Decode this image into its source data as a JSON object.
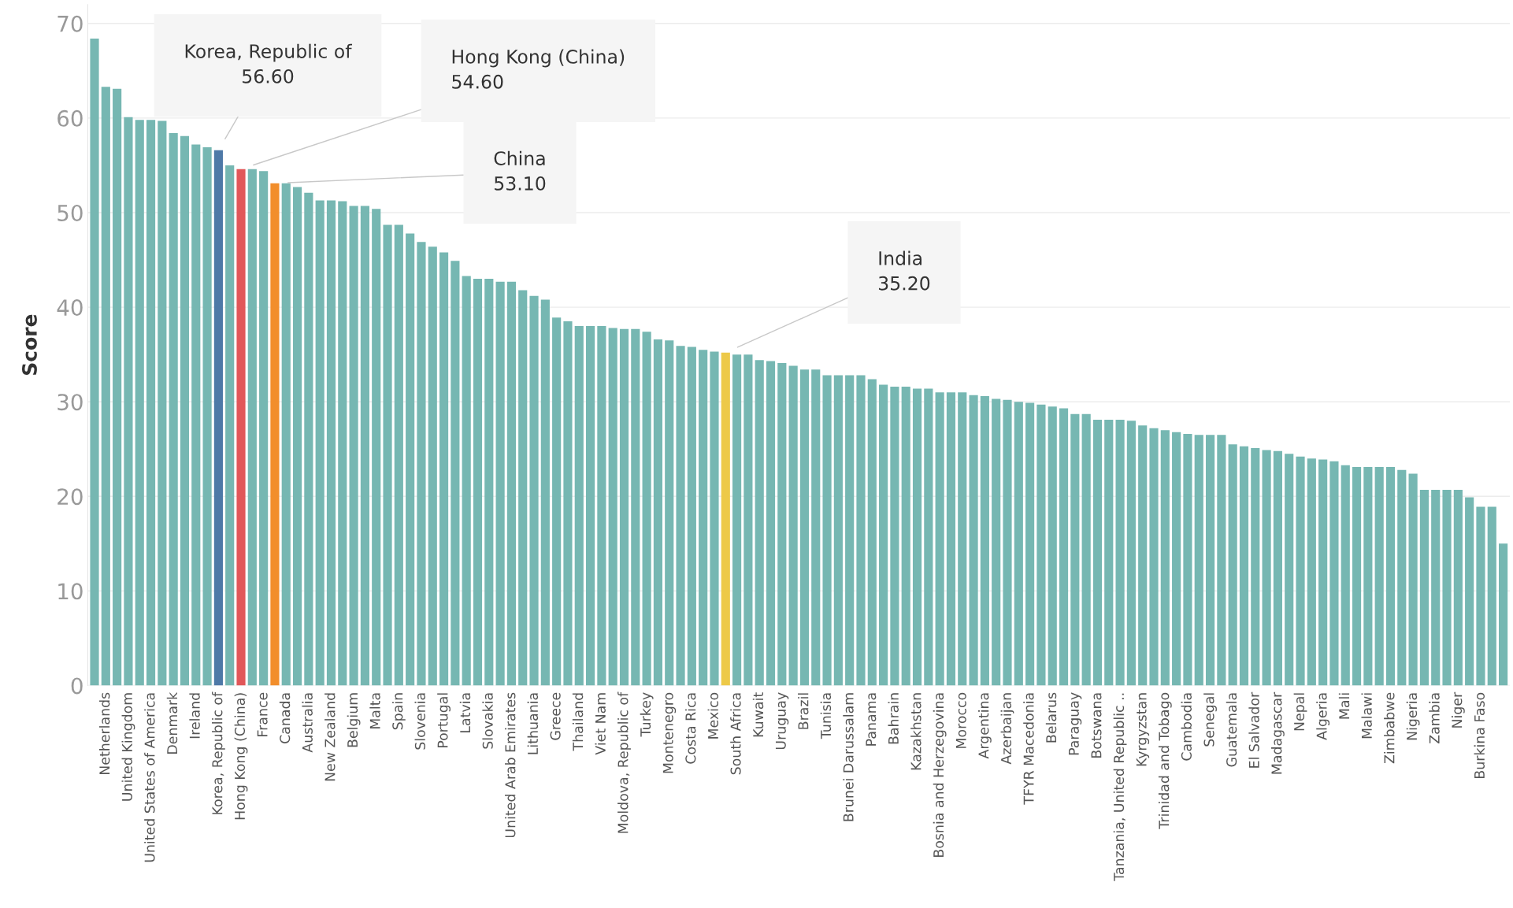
{
  "chart_data": {
    "type": "bar",
    "ylabel": "Score",
    "categories": [
      null,
      "Netherlands",
      null,
      "United Kingdom",
      null,
      "United States of America",
      null,
      "Denmark",
      null,
      "Ireland",
      null,
      "Korea, Republic of",
      null,
      "Hong Kong (China)",
      null,
      "France",
      null,
      "Canada",
      null,
      "Australia",
      null,
      "New Zealand",
      null,
      "Belgium",
      null,
      "Malta",
      null,
      "Spain",
      null,
      "Slovenia",
      null,
      "Portugal",
      null,
      "Latvia",
      null,
      "Slovakia",
      null,
      "United Arab Emirates",
      null,
      "Lithuania",
      null,
      "Greece",
      null,
      "Thailand",
      null,
      "Viet Nam",
      null,
      "Moldova, Republic of",
      null,
      "Turkey",
      null,
      "Montenegro",
      null,
      "Costa Rica",
      null,
      "Mexico",
      null,
      "South Africa",
      null,
      "Kuwait",
      null,
      "Uruguay",
      null,
      "Brazil",
      null,
      "Tunisia",
      null,
      "Brunei Darussalam",
      null,
      "Panama",
      null,
      "Bahrain",
      null,
      "Kazakhstan",
      null,
      "Bosnia and Herzegovina",
      null,
      "Morocco",
      null,
      "Argentina",
      null,
      "Azerbaijan",
      null,
      "TFYR Macedonia",
      null,
      "Belarus",
      null,
      "Paraguay",
      null,
      "Botswana",
      null,
      "Tanzania, United Republic ..",
      null,
      "Kyrgyzstan",
      null,
      "Trinidad and Tobago",
      null,
      "Cambodia",
      null,
      "Senegal",
      null,
      "Guatemala",
      null,
      "El Salvador",
      null,
      "Madagascar",
      null,
      "Nepal",
      null,
      "Algeria",
      null,
      "Mali",
      null,
      "Malawi",
      null,
      "Zimbabwe",
      null,
      "Nigeria",
      null,
      "Zambia",
      null,
      "Niger",
      null,
      "Burkina Faso",
      null,
      null
    ],
    "values": [
      68.4,
      63.3,
      63.1,
      60.1,
      59.8,
      59.8,
      59.7,
      58.4,
      58.1,
      57.2,
      56.9,
      56.6,
      55.0,
      54.6,
      54.6,
      54.4,
      53.1,
      53.1,
      52.7,
      52.1,
      51.3,
      51.3,
      51.2,
      50.7,
      50.7,
      50.4,
      48.7,
      48.7,
      47.8,
      46.9,
      46.4,
      45.8,
      44.9,
      43.3,
      43.0,
      43.0,
      42.7,
      42.7,
      41.8,
      41.2,
      40.8,
      38.9,
      38.5,
      38.0,
      38.0,
      38.0,
      37.8,
      37.7,
      37.7,
      37.4,
      36.6,
      36.5,
      35.9,
      35.8,
      35.5,
      35.3,
      35.2,
      35.0,
      35.0,
      34.4,
      34.3,
      34.1,
      33.8,
      33.4,
      33.4,
      32.8,
      32.8,
      32.8,
      32.8,
      32.4,
      31.8,
      31.6,
      31.6,
      31.4,
      31.4,
      31.0,
      31.0,
      31.0,
      30.7,
      30.6,
      30.3,
      30.2,
      30.0,
      29.9,
      29.7,
      29.5,
      29.3,
      28.7,
      28.7,
      28.1,
      28.1,
      28.1,
      28.0,
      27.5,
      27.2,
      27.0,
      26.8,
      26.6,
      26.5,
      26.5,
      26.5,
      25.5,
      25.3,
      25.1,
      24.9,
      24.8,
      24.5,
      24.2,
      24.0,
      23.9,
      23.7,
      23.3,
      23.1,
      23.1,
      23.1,
      23.1,
      22.8,
      22.4,
      20.7,
      20.7,
      20.7,
      20.7,
      19.9,
      18.9,
      18.9,
      15.0
    ],
    "colors": [
      "#76b7b2",
      "#76b7b2",
      "#76b7b2",
      "#76b7b2",
      "#76b7b2",
      "#76b7b2",
      "#76b7b2",
      "#76b7b2",
      "#76b7b2",
      "#76b7b2",
      "#76b7b2",
      "#4e79a7",
      "#76b7b2",
      "#e15759",
      "#76b7b2",
      "#76b7b2",
      "#f28e2b",
      "#76b7b2",
      "#76b7b2",
      "#76b7b2",
      "#76b7b2",
      "#76b7b2",
      "#76b7b2",
      "#76b7b2",
      "#76b7b2",
      "#76b7b2",
      "#76b7b2",
      "#76b7b2",
      "#76b7b2",
      "#76b7b2",
      "#76b7b2",
      "#76b7b2",
      "#76b7b2",
      "#76b7b2",
      "#76b7b2",
      "#76b7b2",
      "#76b7b2",
      "#76b7b2",
      "#76b7b2",
      "#76b7b2",
      "#76b7b2",
      "#76b7b2",
      "#76b7b2",
      "#76b7b2",
      "#76b7b2",
      "#76b7b2",
      "#76b7b2",
      "#76b7b2",
      "#76b7b2",
      "#76b7b2",
      "#76b7b2",
      "#76b7b2",
      "#76b7b2",
      "#76b7b2",
      "#76b7b2",
      "#76b7b2",
      "#edc948",
      "#76b7b2",
      "#76b7b2",
      "#76b7b2",
      "#76b7b2",
      "#76b7b2",
      "#76b7b2",
      "#76b7b2",
      "#76b7b2",
      "#76b7b2",
      "#76b7b2",
      "#76b7b2",
      "#76b7b2",
      "#76b7b2",
      "#76b7b2",
      "#76b7b2",
      "#76b7b2",
      "#76b7b2",
      "#76b7b2",
      "#76b7b2",
      "#76b7b2",
      "#76b7b2",
      "#76b7b2",
      "#76b7b2",
      "#76b7b2",
      "#76b7b2",
      "#76b7b2",
      "#76b7b2",
      "#76b7b2",
      "#76b7b2",
      "#76b7b2",
      "#76b7b2",
      "#76b7b2",
      "#76b7b2",
      "#76b7b2",
      "#76b7b2",
      "#76b7b2",
      "#76b7b2",
      "#76b7b2",
      "#76b7b2",
      "#76b7b2",
      "#76b7b2",
      "#76b7b2",
      "#76b7b2",
      "#76b7b2",
      "#76b7b2",
      "#76b7b2",
      "#76b7b2",
      "#76b7b2",
      "#76b7b2",
      "#76b7b2",
      "#76b7b2",
      "#76b7b2",
      "#76b7b2",
      "#76b7b2",
      "#76b7b2",
      "#76b7b2",
      "#76b7b2",
      "#76b7b2",
      "#76b7b2",
      "#76b7b2",
      "#76b7b2",
      "#76b7b2",
      "#76b7b2",
      "#76b7b2",
      "#76b7b2",
      "#76b7b2",
      "#76b7b2",
      "#76b7b2",
      "#76b7b2"
    ],
    "ylim": [
      0,
      72
    ],
    "yticks": [
      0,
      10,
      20,
      30,
      40,
      50,
      60,
      70
    ],
    "grid": "y",
    "annotations": [
      "Korea, Republic of\n56.60",
      "Hong Kong (China)\n54.60",
      "China\n53.10",
      "India\n35.20"
    ]
  }
}
